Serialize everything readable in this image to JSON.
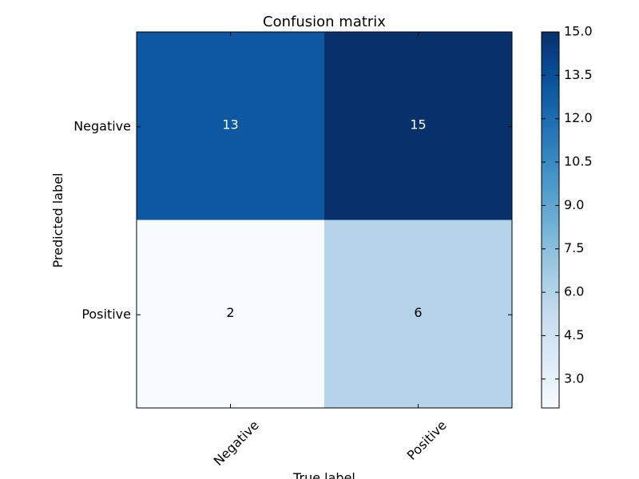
{
  "chart_data": {
    "type": "heatmap",
    "title": "Confusion matrix",
    "xlabel": "True label",
    "ylabel": "Predicted label",
    "x_categories": [
      "Negative",
      "Positive"
    ],
    "y_categories": [
      "Negative",
      "Positive"
    ],
    "values": [
      [
        13,
        15
      ],
      [
        2,
        6
      ]
    ],
    "colormap": "Blues",
    "colorbar": {
      "min": 2,
      "max": 15,
      "ticks": [
        3.0,
        4.5,
        6.0,
        7.5,
        9.0,
        10.5,
        12.0,
        13.5,
        15.0
      ],
      "tick_labels": [
        "3.0",
        "4.5",
        "6.0",
        "7.5",
        "9.0",
        "10.5",
        "12.0",
        "13.5",
        "15.0"
      ]
    },
    "cell_text_colors": {
      "dark": "#ffffff",
      "light": "#000000"
    },
    "grid": false,
    "legend": "colorbar-right"
  }
}
